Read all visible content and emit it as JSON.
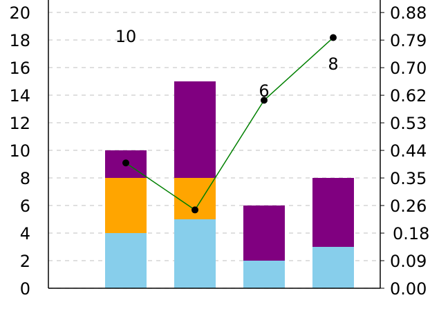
{
  "chart_data": {
    "type": "bar",
    "categories": [
      null,
      null,
      null,
      null
    ],
    "series": [
      {
        "color": "#87ceeb",
        "values": [
          4,
          5,
          2,
          3
        ]
      },
      {
        "color": "#ffa500",
        "values": [
          4,
          3,
          0,
          0
        ]
      },
      {
        "color": "#800080",
        "values": [
          2,
          7,
          4,
          5
        ]
      },
      {
        "type": "line",
        "axis": "y2",
        "color": "#008000",
        "marker_color": "#000000",
        "values": [
          0.4,
          0.25,
          0.6,
          0.8
        ]
      }
    ],
    "annotations": [
      "10",
      "6",
      "8"
    ],
    "ylim": [
      0,
      20.9
    ],
    "yticks": [
      0,
      2,
      4,
      6,
      8,
      10,
      12,
      14,
      16,
      18,
      20
    ],
    "y2lim": [
      0,
      0.92
    ],
    "y2ticks": [
      {
        "value": 0,
        "label": "0.00"
      },
      {
        "value": 0.088,
        "label": "0.09"
      },
      {
        "value": 0.176,
        "label": "0.18"
      },
      {
        "value": 0.264,
        "label": "0.26"
      },
      {
        "value": 0.352,
        "label": "0.35"
      },
      {
        "value": 0.44,
        "label": "0.44"
      },
      {
        "value": 0.528,
        "label": "0.53"
      },
      {
        "value": 0.616,
        "label": "0.62"
      },
      {
        "value": 0.704,
        "label": "0.70"
      },
      {
        "value": 0.792,
        "label": "0.79"
      },
      {
        "value": 0.88,
        "label": "0.88"
      }
    ],
    "grid": true
  }
}
